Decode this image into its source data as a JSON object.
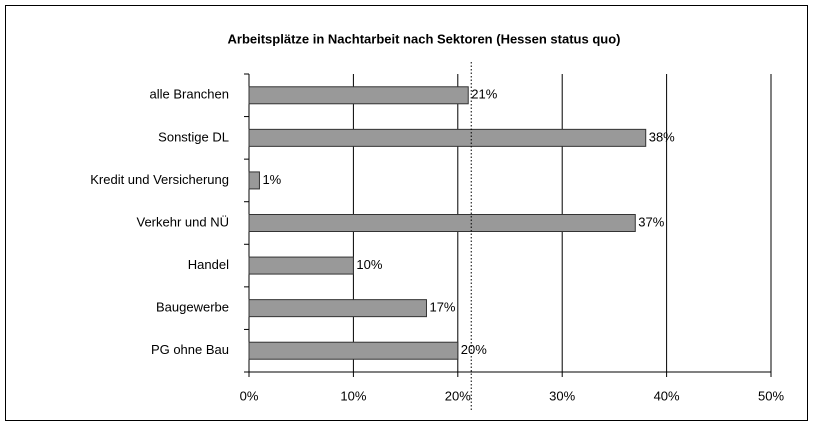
{
  "chart_data": {
    "type": "hbar",
    "title": "Arbeitsplätze in Nachtarbeit nach Sektoren (Hessen status quo)",
    "categories": [
      "alle Branchen",
      "Sonstige DL",
      "Kredit und Versicherung",
      "Verkehr und NÜ",
      "Handel",
      "Baugewerbe",
      "PG ohne Bau"
    ],
    "values": [
      21,
      38,
      1,
      37,
      10,
      17,
      20
    ],
    "value_labels": [
      "21%",
      "38%",
      "1%",
      "37%",
      "10%",
      "17%",
      "20%"
    ],
    "color": "#999999",
    "xlim": [
      0,
      50
    ],
    "xticks": [
      {
        "value": 0,
        "label": "0%"
      },
      {
        "value": 10,
        "label": "10%"
      },
      {
        "value": 20,
        "label": "20%"
      },
      {
        "value": 30,
        "label": "30%"
      },
      {
        "value": 40,
        "label": "40%"
      },
      {
        "value": 50,
        "label": "50%"
      }
    ],
    "grid": true
  }
}
